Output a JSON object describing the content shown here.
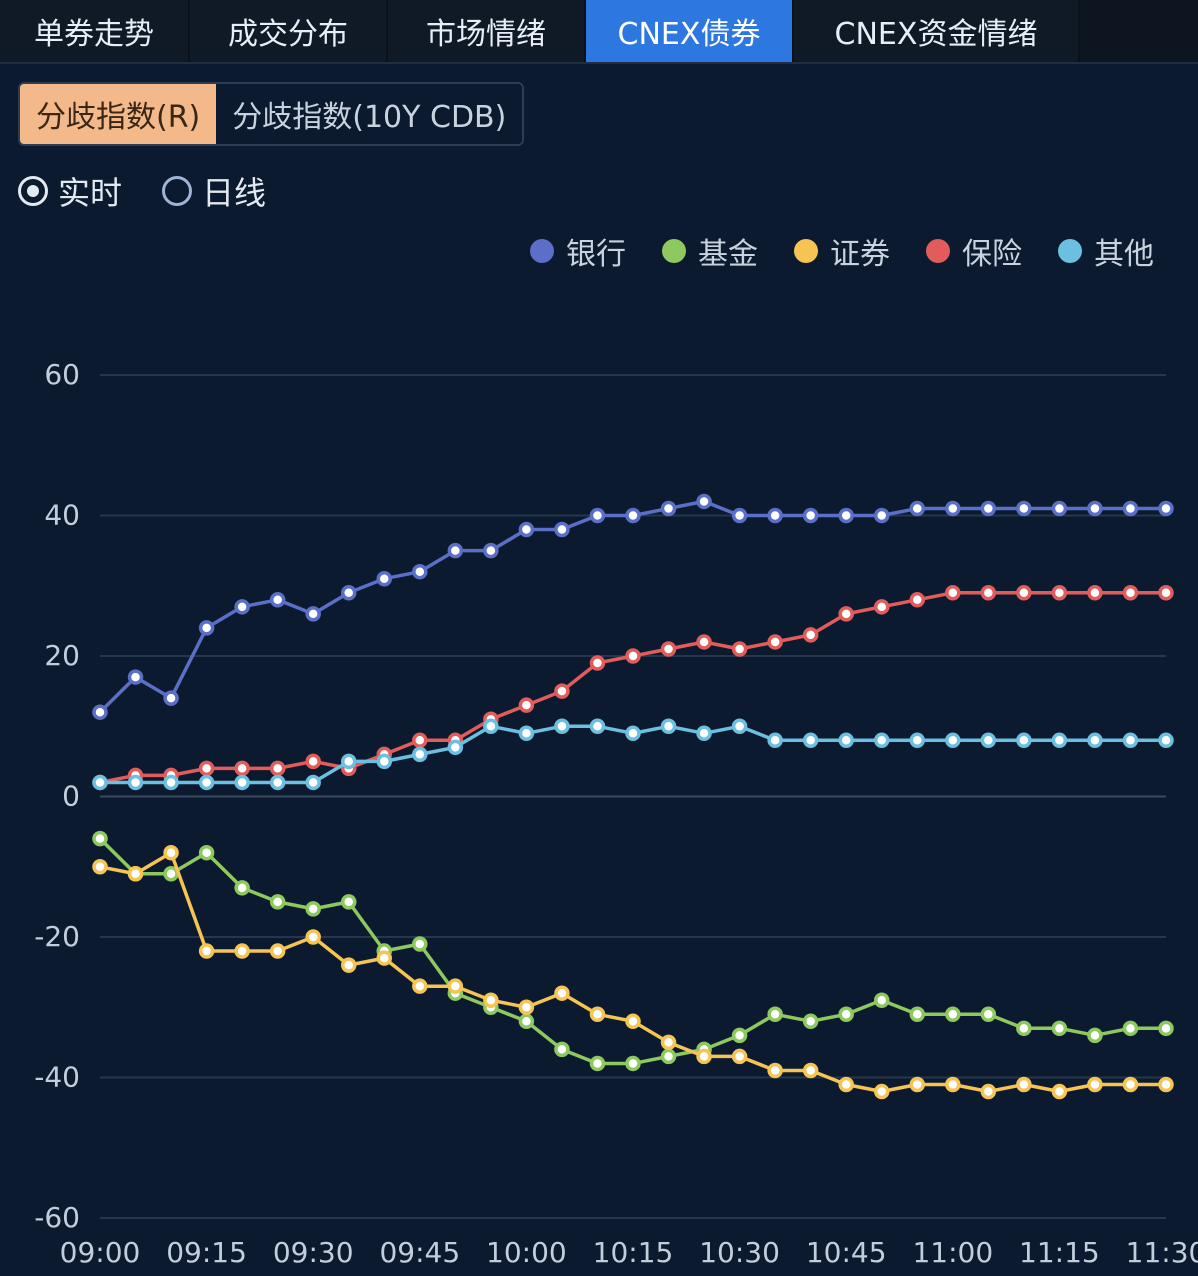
{
  "tabs": [
    {
      "label": "单券走势",
      "active": false
    },
    {
      "label": "成交分布",
      "active": false
    },
    {
      "label": "市场情绪",
      "active": false
    },
    {
      "label": "CNEX债券",
      "active": true
    },
    {
      "label": "CNEX资金情绪",
      "active": false
    }
  ],
  "segments": [
    {
      "label": "分歧指数(R)",
      "active": true
    },
    {
      "label": "分歧指数(10Y CDB)",
      "active": false
    }
  ],
  "radios": [
    {
      "label": "实时",
      "checked": true
    },
    {
      "label": "日线",
      "checked": false
    }
  ],
  "colors": {
    "bank": "#5b6ec8",
    "fund": "#8dc95f",
    "securities": "#f6c453",
    "insurance": "#e25c5c",
    "other": "#6bbfe0",
    "tab_active": "#2d77e0",
    "segment_active": "#f3b98a"
  },
  "chart_data": {
    "type": "line",
    "legend_position": "top-right",
    "grid": true,
    "ylim": [
      -60,
      60
    ],
    "yticks": [
      "60",
      "40",
      "20",
      "0",
      "-20",
      "-40",
      "-60"
    ],
    "xtick_labels": [
      "09:00",
      "09:15",
      "09:30",
      "09:45",
      "10:00",
      "10:15",
      "10:30",
      "10:45",
      "11:00",
      "11:15",
      "11:30"
    ],
    "x": [
      "09:00",
      "09:05",
      "09:10",
      "09:15",
      "09:20",
      "09:25",
      "09:30",
      "09:35",
      "09:40",
      "09:45",
      "09:50",
      "09:55",
      "10:00",
      "10:05",
      "10:10",
      "10:15",
      "10:20",
      "10:25",
      "10:30",
      "10:35",
      "10:40",
      "10:45",
      "10:50",
      "10:55",
      "11:00",
      "11:05",
      "11:10",
      "11:15",
      "11:20",
      "11:25",
      "11:30"
    ],
    "series": [
      {
        "name": "银行",
        "color": "#5b6ec8",
        "values": [
          12,
          17,
          14,
          24,
          27,
          28,
          26,
          29,
          31,
          32,
          35,
          35,
          38,
          38,
          40,
          40,
          41,
          42,
          40,
          40,
          40,
          40,
          40,
          41,
          41,
          41,
          41,
          41,
          41,
          41,
          41
        ]
      },
      {
        "name": "基金",
        "color": "#8dc95f",
        "values": [
          -6,
          -11,
          -11,
          -8,
          -13,
          -15,
          -16,
          -15,
          -22,
          -21,
          -28,
          -30,
          -32,
          -36,
          -38,
          -38,
          -37,
          -36,
          -34,
          -31,
          -32,
          -31,
          -29,
          -31,
          -31,
          -31,
          -33,
          -33,
          -34,
          -33,
          -33
        ]
      },
      {
        "name": "证券",
        "color": "#f6c453",
        "values": [
          -10,
          -11,
          -8,
          -22,
          -22,
          -22,
          -20,
          -24,
          -23,
          -27,
          -27,
          -29,
          -30,
          -28,
          -31,
          -32,
          -35,
          -37,
          -37,
          -39,
          -39,
          -41,
          -42,
          -41,
          -41,
          -42,
          -41,
          -42,
          -41,
          -41,
          -41
        ]
      },
      {
        "name": "保险",
        "color": "#e25c5c",
        "values": [
          2,
          3,
          3,
          4,
          4,
          4,
          5,
          4,
          6,
          8,
          8,
          11,
          13,
          15,
          19,
          20,
          21,
          22,
          21,
          22,
          23,
          26,
          27,
          28,
          29,
          29,
          29,
          29,
          29,
          29,
          29
        ]
      },
      {
        "name": "其他",
        "color": "#6bbfe0",
        "values": [
          2,
          2,
          2,
          2,
          2,
          2,
          2,
          5,
          5,
          6,
          7,
          10,
          9,
          10,
          10,
          9,
          10,
          9,
          10,
          8,
          8,
          8,
          8,
          8,
          8,
          8,
          8,
          8,
          8,
          8,
          8
        ]
      }
    ]
  }
}
